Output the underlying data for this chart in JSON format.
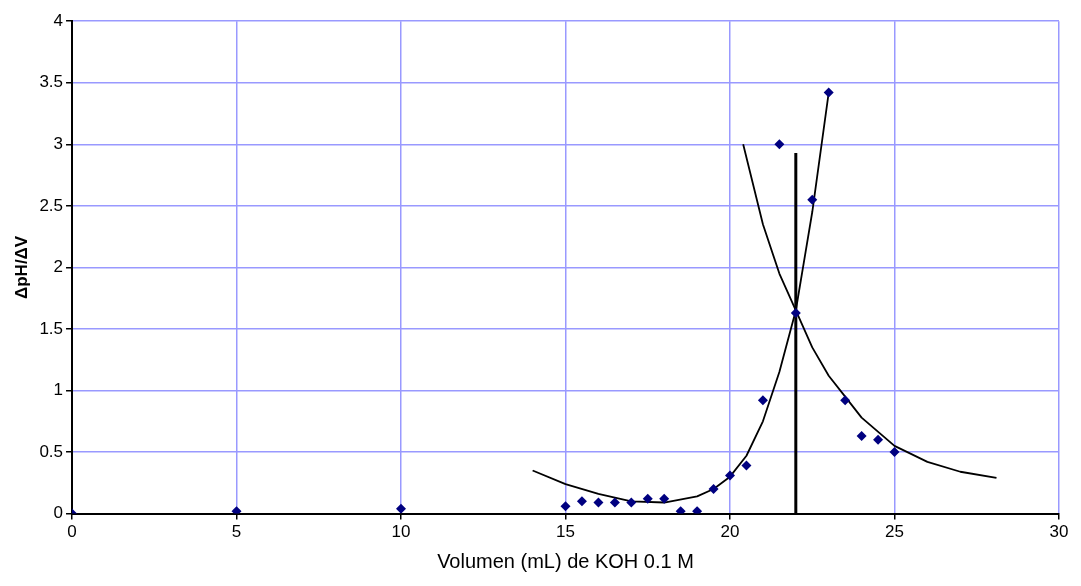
{
  "chart_data": {
    "type": "scatter",
    "xlabel": "Volumen (mL) de KOH 0.1 M",
    "ylabel": "ΔpH/ΔV",
    "xlim": [
      0,
      30
    ],
    "xticks": [
      0,
      5,
      10,
      15,
      20,
      25,
      30
    ],
    "ylim": [
      0,
      4
    ],
    "yticks": [
      0,
      0.5,
      1,
      1.5,
      2,
      2.5,
      3,
      3.5,
      4
    ],
    "grid": true,
    "legend": false,
    "series": [
      {
        "type": "scatter",
        "color": "#000080",
        "marker": "diamond",
        "x": [
          0,
          5,
          10,
          15,
          15.5,
          16,
          16.5,
          17,
          17.5,
          18,
          18.5,
          19,
          19.5,
          20,
          20.5,
          21,
          21.5,
          22,
          22.5,
          23,
          23.5,
          24,
          24.5,
          25
        ],
        "values": [
          0,
          0.02,
          0.04,
          0.06,
          0.1,
          0.09,
          0.09,
          0.09,
          0.12,
          0.12,
          0.02,
          0.02,
          0.2,
          0.31,
          0.39,
          0.92,
          3.0,
          1.63,
          2.55,
          3.42,
          0.92,
          0.63,
          0.6,
          0.5
        ]
      },
      {
        "type": "line",
        "color": "#000000",
        "marker": "none",
        "x": [
          14,
          15,
          16,
          17,
          18,
          19,
          19.5,
          20,
          20.5,
          21,
          21.5,
          22,
          22.5,
          23
        ],
        "values": [
          0.35,
          0.24,
          0.16,
          0.1,
          0.09,
          0.14,
          0.2,
          0.3,
          0.47,
          0.75,
          1.15,
          1.65,
          2.45,
          3.42
        ]
      },
      {
        "type": "line",
        "color": "#000000",
        "marker": "none",
        "x": [
          20.4,
          21,
          21.5,
          22,
          22.5,
          23,
          23.5,
          24,
          25,
          26,
          27,
          28.1
        ],
        "values": [
          3.0,
          2.35,
          1.95,
          1.65,
          1.35,
          1.12,
          0.95,
          0.78,
          0.55,
          0.42,
          0.34,
          0.29
        ]
      },
      {
        "type": "line",
        "color": "#000000",
        "marker": "none",
        "x": [
          22,
          22
        ],
        "values": [
          0,
          2.93
        ]
      }
    ]
  }
}
